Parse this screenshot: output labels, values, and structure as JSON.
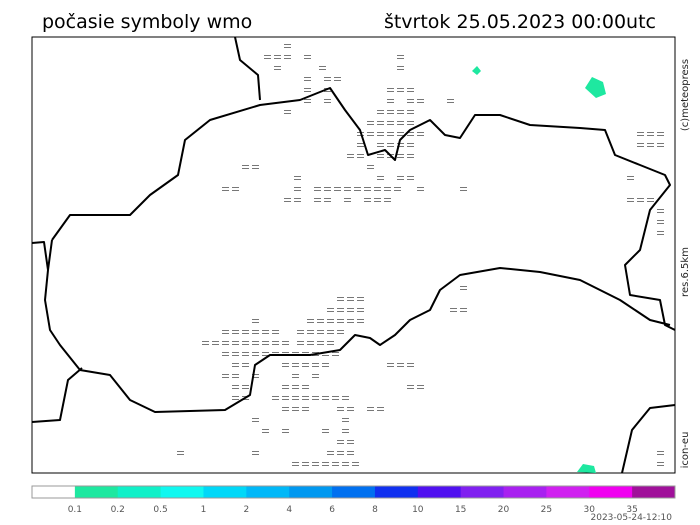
{
  "header": {
    "title": "počasie symboly wmo",
    "datetime": "štvrtok 25.05.2023 00:00utc"
  },
  "side_labels": {
    "copyright": "(c)meteopress",
    "resolution": "res.6.5km",
    "model": "icon-eu"
  },
  "legend": {
    "colors": [
      "#ffffff",
      "#1ee8a0",
      "#10f0c8",
      "#10f8f0",
      "#00d8f8",
      "#00b8f8",
      "#0098f0",
      "#0070f0",
      "#1030f0",
      "#5010f0",
      "#8020f0",
      "#a820f0",
      "#d020f0",
      "#f000f0",
      "#a0109a"
    ],
    "labels": [
      "0.1",
      "0.2",
      "0.5",
      "1",
      "2",
      "4",
      "6",
      "8",
      "10",
      "15",
      "20",
      "25",
      "30",
      "35"
    ]
  },
  "footer": {
    "timestamp": "2023-05-24-12:10"
  }
}
